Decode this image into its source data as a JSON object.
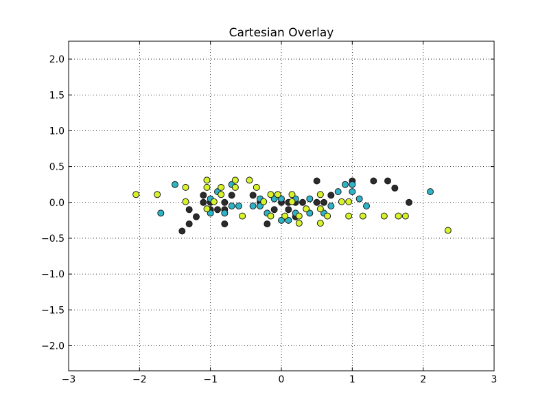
{
  "chart_data": {
    "type": "scatter",
    "title": "Cartesian Overlay",
    "xlabel": "",
    "ylabel": "",
    "xlim": [
      -3,
      3
    ],
    "ylim": [
      -2.35,
      2.25
    ],
    "xticks": [
      -3,
      -2,
      -1,
      0,
      1,
      2,
      3
    ],
    "yticks": [
      -2.0,
      -1.5,
      -1.0,
      -0.5,
      0.0,
      0.5,
      1.0,
      1.5,
      2.0
    ],
    "xtick_labels": [
      "−3",
      "−2",
      "−1",
      "0",
      "1",
      "2",
      "3"
    ],
    "ytick_labels": [
      "−2.0",
      "−1.5",
      "−1.0",
      "−0.5",
      "0.0",
      "0.5",
      "1.0",
      "1.5",
      "2.0"
    ],
    "grid": true,
    "colors": {
      "black": "#2b2b2b",
      "teal": "#2fb3c6",
      "yellow": "#d8f22a",
      "marker_edge": "#1a1a1a"
    },
    "series": [
      {
        "color": "black",
        "points": [
          [
            -1.4,
            -0.4
          ],
          [
            -1.3,
            -0.3
          ],
          [
            -1.3,
            -0.1
          ],
          [
            -1.2,
            -0.2
          ],
          [
            -1.1,
            0.0
          ],
          [
            -1.1,
            0.1
          ],
          [
            -1.0,
            0.0
          ],
          [
            -1.0,
            -0.1
          ],
          [
            -0.9,
            -0.1
          ],
          [
            -0.8,
            -0.1
          ],
          [
            -0.8,
            -0.3
          ],
          [
            -0.7,
            0.1
          ],
          [
            -0.4,
            0.1
          ],
          [
            -0.3,
            0.0
          ],
          [
            -0.2,
            -0.3
          ],
          [
            -0.1,
            -0.1
          ],
          [
            0.0,
            0.0
          ],
          [
            0.1,
            -0.1
          ],
          [
            0.2,
            -0.2
          ],
          [
            0.2,
            0.0
          ],
          [
            0.3,
            0.0
          ],
          [
            0.5,
            0.0
          ],
          [
            0.5,
            0.3
          ],
          [
            0.6,
            0.0
          ],
          [
            0.7,
            0.1
          ],
          [
            1.0,
            0.3
          ],
          [
            1.3,
            0.3
          ],
          [
            1.5,
            0.3
          ],
          [
            1.6,
            0.2
          ],
          [
            1.8,
            0.0
          ],
          [
            0.1,
            0.0
          ],
          [
            -0.8,
            0.0
          ]
        ]
      },
      {
        "color": "teal",
        "points": [
          [
            -1.7,
            -0.15
          ],
          [
            -1.5,
            0.25
          ],
          [
            -1.0,
            0.05
          ],
          [
            -1.0,
            -0.15
          ],
          [
            -0.9,
            0.15
          ],
          [
            -0.8,
            -0.15
          ],
          [
            -0.7,
            -0.05
          ],
          [
            -0.6,
            -0.05
          ],
          [
            -0.7,
            0.25
          ],
          [
            -0.4,
            -0.05
          ],
          [
            -0.3,
            0.05
          ],
          [
            -0.3,
            -0.05
          ],
          [
            -0.2,
            -0.15
          ],
          [
            -0.1,
            0.05
          ],
          [
            0.0,
            -0.25
          ],
          [
            0.1,
            -0.25
          ],
          [
            0.2,
            -0.15
          ],
          [
            0.2,
            0.05
          ],
          [
            0.4,
            0.05
          ],
          [
            0.4,
            -0.15
          ],
          [
            0.6,
            -0.15
          ],
          [
            0.7,
            -0.05
          ],
          [
            0.8,
            0.15
          ],
          [
            0.9,
            0.25
          ],
          [
            1.0,
            0.25
          ],
          [
            1.0,
            0.15
          ],
          [
            1.1,
            0.05
          ],
          [
            1.2,
            -0.05
          ],
          [
            2.1,
            0.15
          ],
          [
            0.0,
            0.05
          ]
        ]
      },
      {
        "color": "yellow",
        "points": [
          [
            -2.05,
            0.11
          ],
          [
            -1.75,
            0.11
          ],
          [
            -1.35,
            0.21
          ],
          [
            -1.35,
            0.01
          ],
          [
            -1.05,
            0.31
          ],
          [
            -1.05,
            0.21
          ],
          [
            -1.05,
            -0.09
          ],
          [
            -0.95,
            0.01
          ],
          [
            -0.85,
            0.21
          ],
          [
            -0.85,
            0.11
          ],
          [
            -0.65,
            0.31
          ],
          [
            -0.65,
            0.21
          ],
          [
            -0.55,
            -0.19
          ],
          [
            -0.45,
            0.31
          ],
          [
            -0.35,
            0.21
          ],
          [
            -0.25,
            0.01
          ],
          [
            -0.15,
            0.11
          ],
          [
            -0.15,
            -0.19
          ],
          [
            -0.05,
            0.11
          ],
          [
            0.05,
            -0.19
          ],
          [
            0.15,
            0.11
          ],
          [
            0.15,
            0.01
          ],
          [
            0.25,
            -0.19
          ],
          [
            0.25,
            -0.29
          ],
          [
            0.35,
            -0.09
          ],
          [
            0.55,
            0.11
          ],
          [
            0.55,
            -0.09
          ],
          [
            0.55,
            -0.29
          ],
          [
            0.65,
            -0.19
          ],
          [
            0.85,
            0.01
          ],
          [
            0.95,
            0.01
          ],
          [
            0.95,
            -0.19
          ],
          [
            1.15,
            -0.19
          ],
          [
            1.45,
            -0.19
          ],
          [
            1.65,
            -0.19
          ],
          [
            1.75,
            -0.19
          ],
          [
            2.35,
            -0.39
          ]
        ]
      }
    ]
  }
}
